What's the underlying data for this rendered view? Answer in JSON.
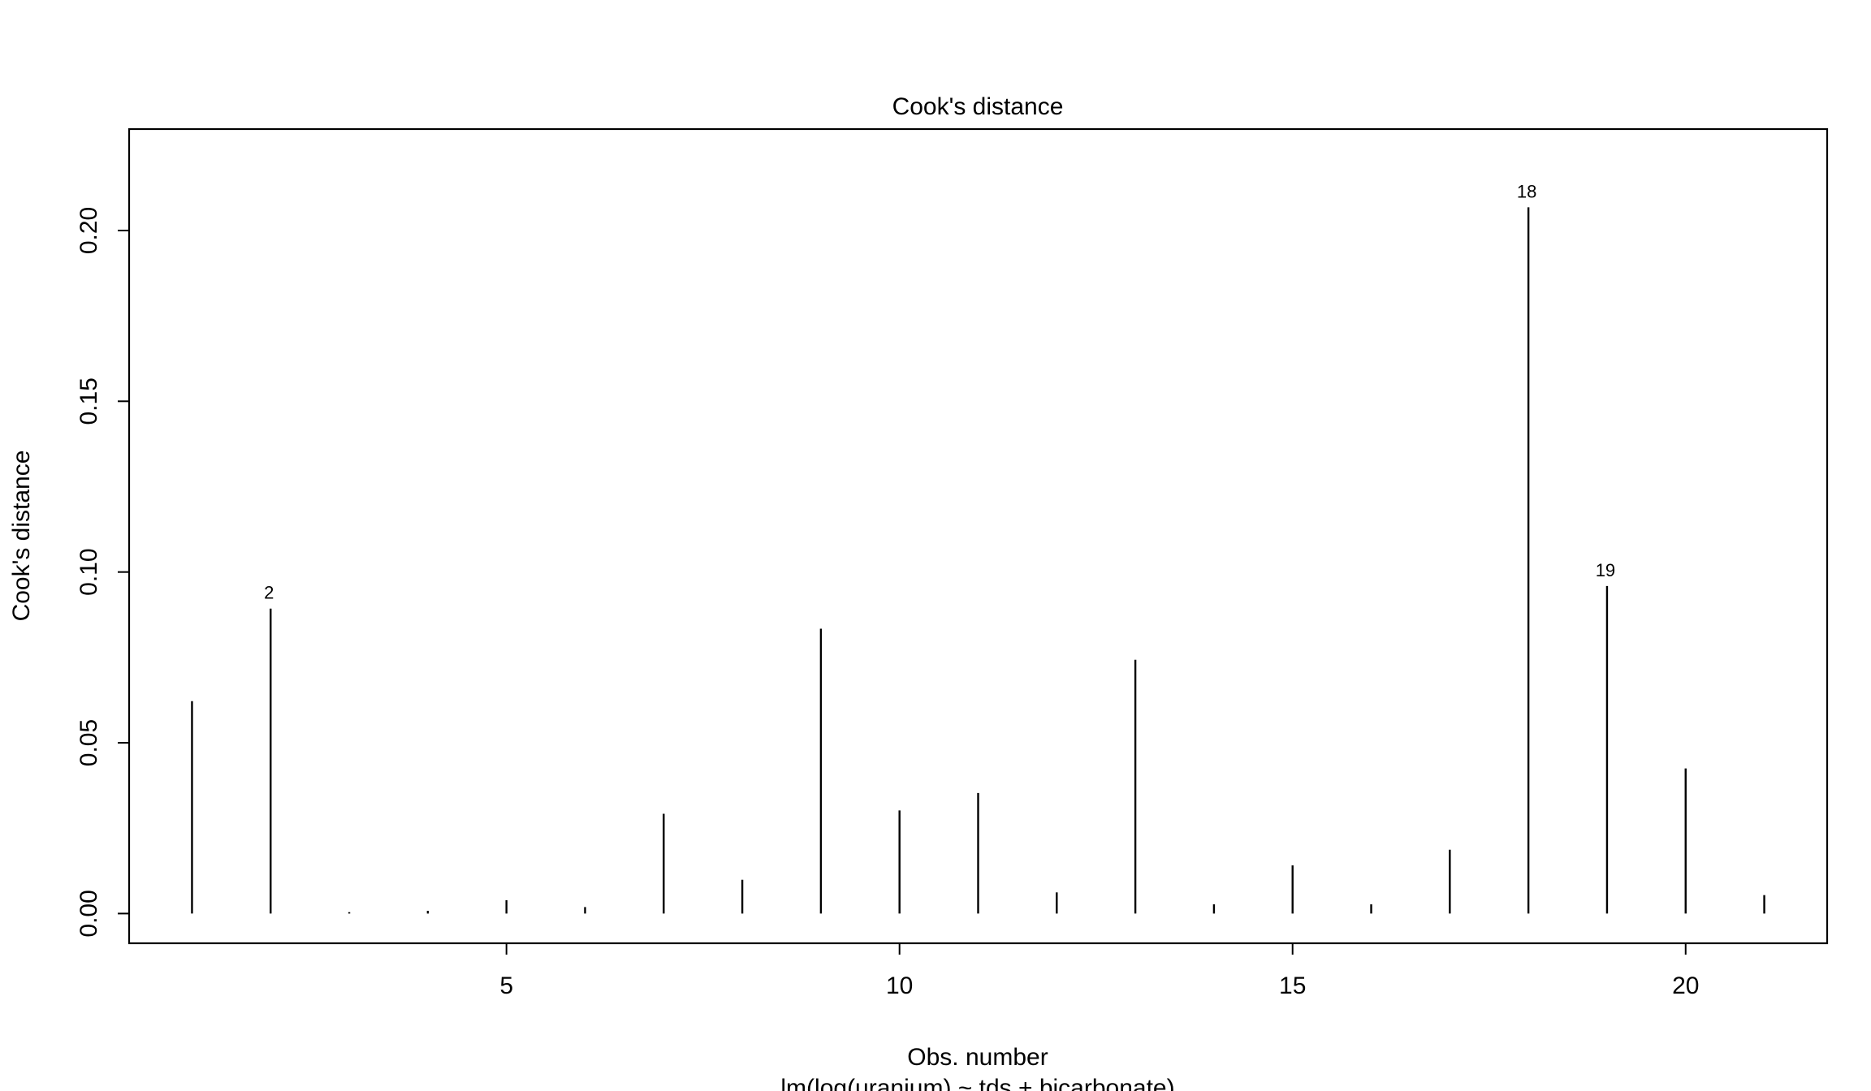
{
  "chart_data": {
    "type": "bar",
    "title": "Cook's distance",
    "xlabel": "Obs. number",
    "subtitle": "lm(log(uranium) ~ tds + bicarbonate)",
    "ylabel": "Cook's distance",
    "x": [
      1,
      2,
      3,
      4,
      5,
      6,
      7,
      8,
      9,
      10,
      11,
      12,
      13,
      14,
      15,
      16,
      17,
      18,
      19,
      20,
      21
    ],
    "values": [
      0.0622,
      0.0893,
      0.0004,
      0.0008,
      0.0039,
      0.0019,
      0.0292,
      0.0099,
      0.0834,
      0.0302,
      0.0353,
      0.0062,
      0.0743,
      0.0027,
      0.0141,
      0.0027,
      0.0187,
      0.2068,
      0.0959,
      0.0425,
      0.0054
    ],
    "xlim": [
      0.2,
      21.8
    ],
    "ylim": [
      -0.0087,
      0.2297
    ],
    "x_ticks": [
      5,
      10,
      15,
      20
    ],
    "x_tick_labels": [
      "5",
      "10",
      "15",
      "20"
    ],
    "y_ticks": [
      0.0,
      0.05,
      0.1,
      0.15,
      0.2
    ],
    "y_tick_labels": [
      "0.00",
      "0.05",
      "0.10",
      "0.15",
      "0.20"
    ],
    "annotations": [
      {
        "x": 2,
        "label": "2"
      },
      {
        "x": 18,
        "label": "18"
      },
      {
        "x": 19,
        "label": "19"
      }
    ],
    "grid": false,
    "legend": "none",
    "color": "#000000"
  }
}
